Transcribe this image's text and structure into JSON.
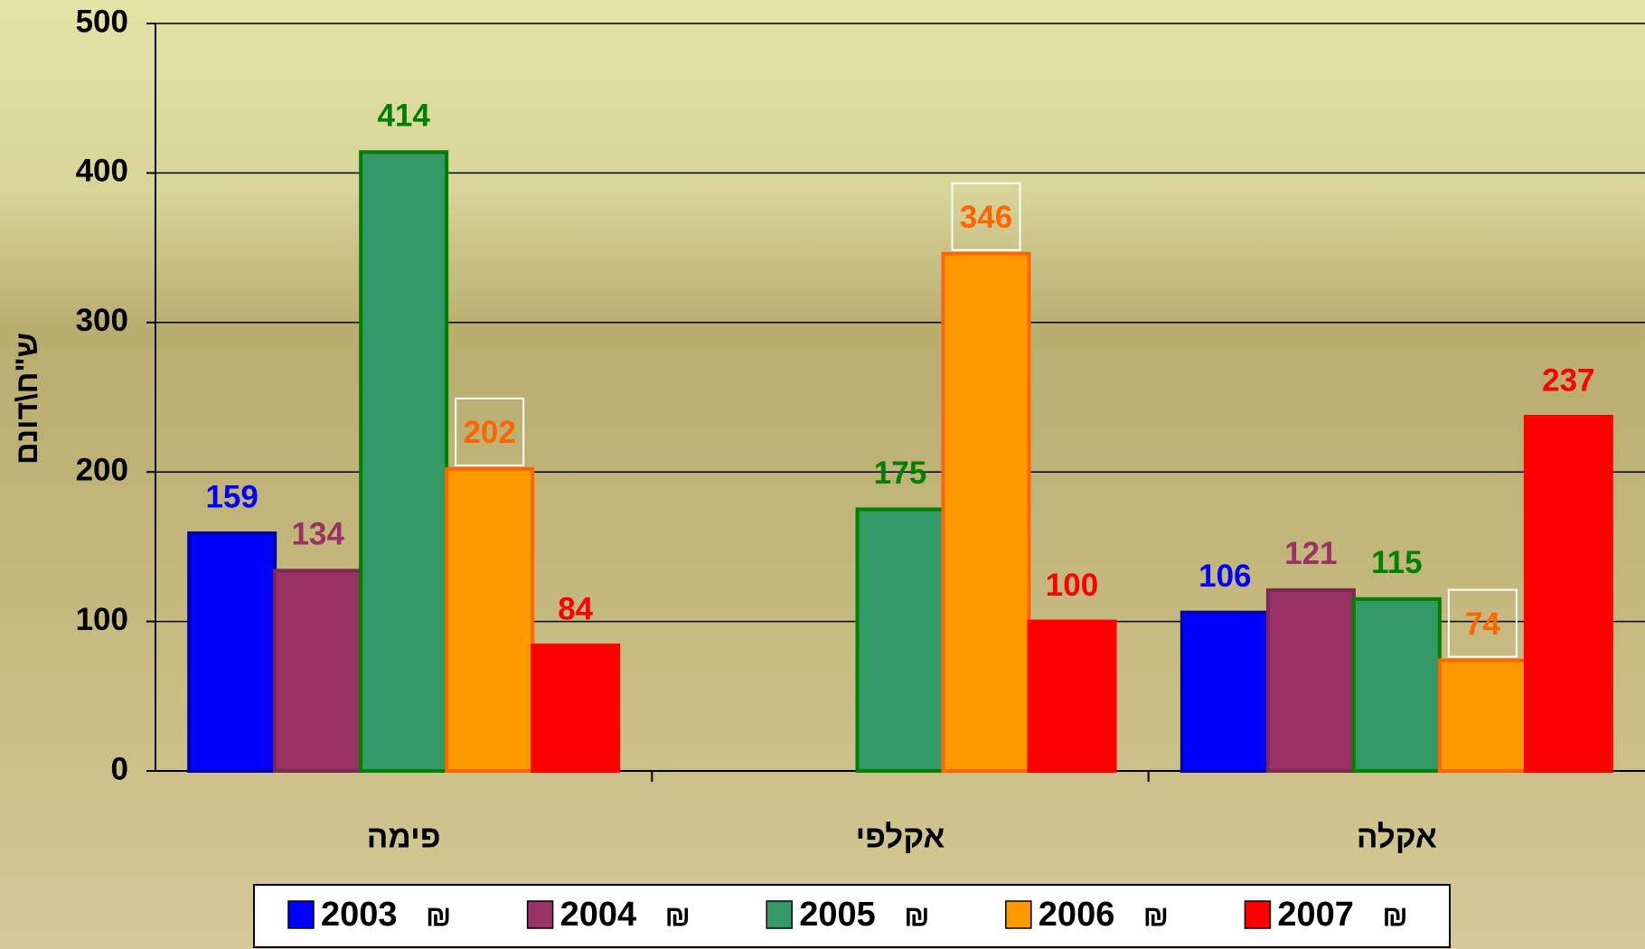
{
  "chart_data": {
    "type": "bar",
    "y_label": "ש\"ח\\דונם",
    "categories": [
      "פימה",
      "אקלפי",
      "אקלה"
    ],
    "series": [
      {
        "name": "2003",
        "color": "#0000ff",
        "values": [
          159,
          null,
          106
        ]
      },
      {
        "name": "2004",
        "color": "#993366",
        "values": [
          134,
          null,
          121
        ]
      },
      {
        "name": "2005",
        "color": "#339966",
        "values": [
          414,
          175,
          115
        ]
      },
      {
        "name": "2006",
        "color": "#ff9900",
        "values": [
          202,
          346,
          74
        ]
      },
      {
        "name": "2007",
        "color": "#ff0000",
        "values": [
          84,
          100,
          237
        ]
      }
    ],
    "legend_symbol": "₪",
    "ylim": [
      0,
      500
    ],
    "yticks": [
      0,
      100,
      200,
      300,
      400,
      500
    ],
    "grid": true
  }
}
